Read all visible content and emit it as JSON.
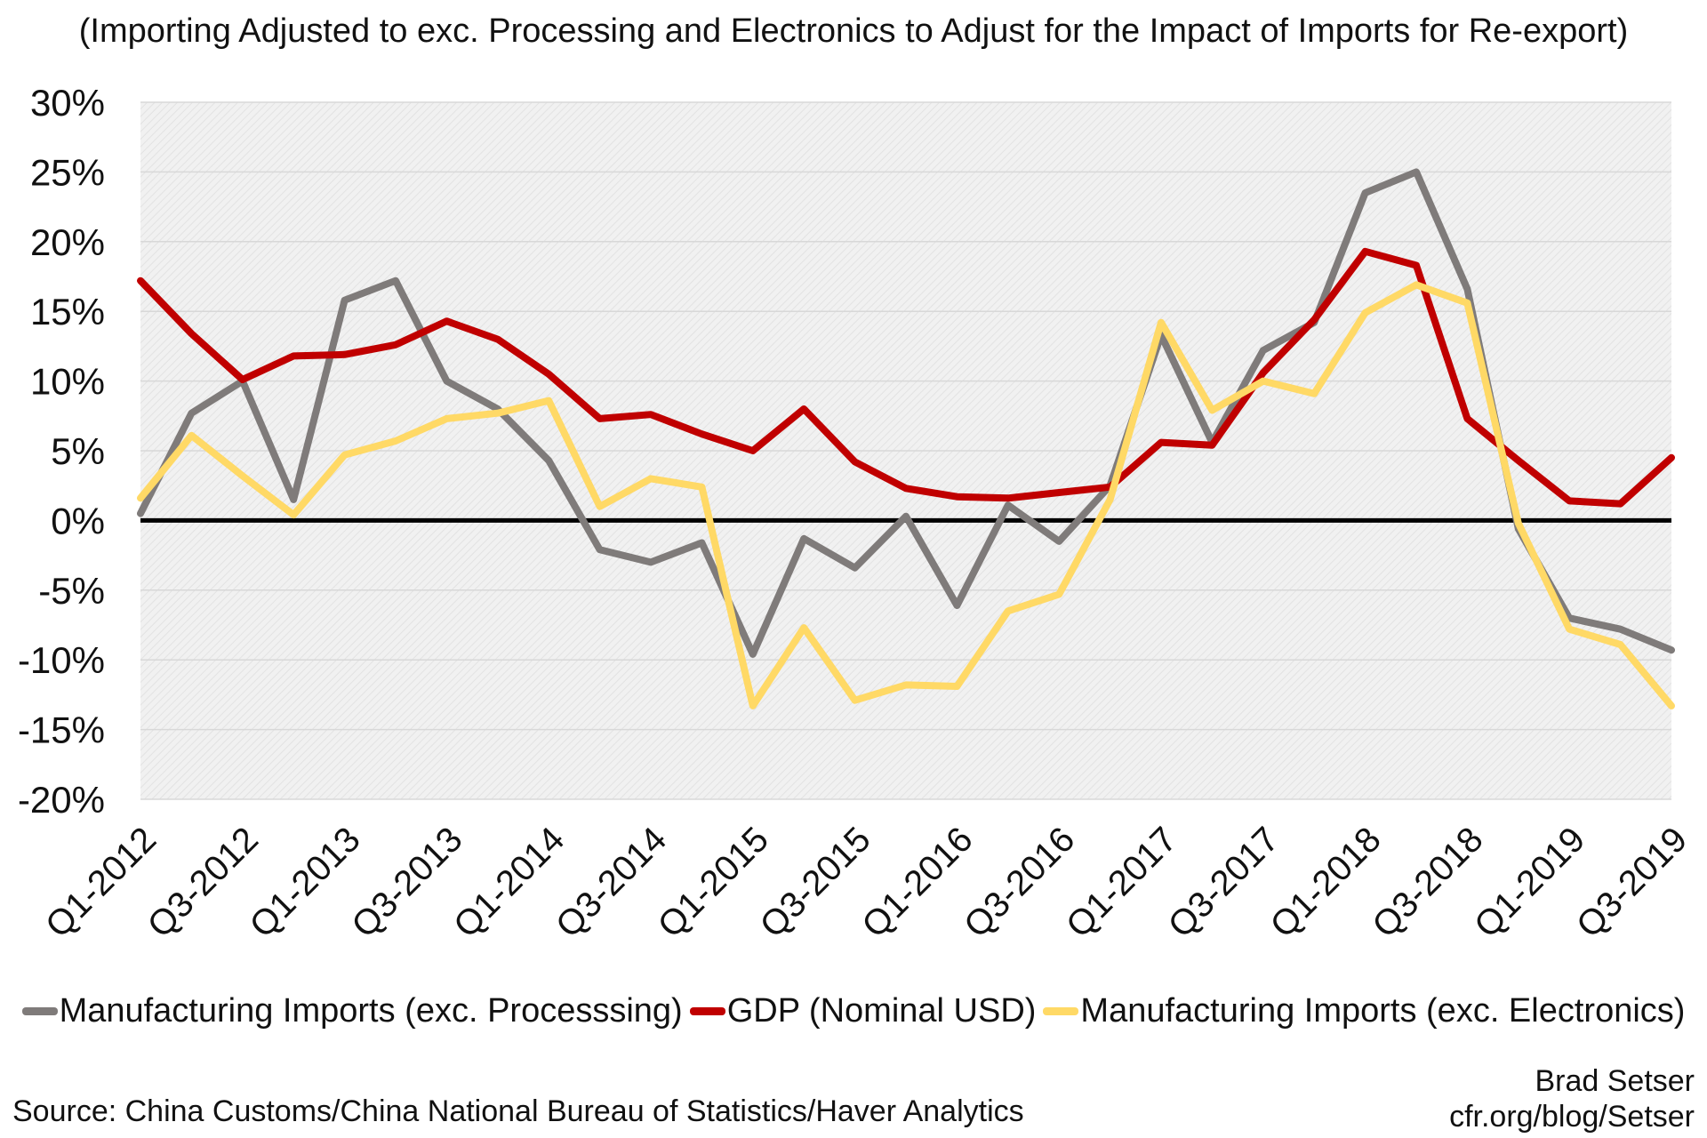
{
  "subtitle": "(Importing Adjusted to exc. Processing and Electronics to Adjust for the Impact of Imports for Re-export)",
  "source": "Source: China Customs/China National Bureau of Statistics/Haver Analytics",
  "credit": {
    "author": "Brad Setser",
    "url": "cfr.org/blog/Setser"
  },
  "chart_data": {
    "type": "line",
    "ylim": [
      -20,
      30
    ],
    "yticks": [
      30,
      25,
      20,
      15,
      10,
      5,
      0,
      -5,
      -10,
      -15,
      -20
    ],
    "ytick_labels": [
      "30%",
      "25%",
      "20%",
      "15%",
      "10%",
      "5%",
      "0%",
      "-5%",
      "-10%",
      "-15%",
      "-20%"
    ],
    "x": [
      "Q1-2012",
      "Q2-2012",
      "Q3-2012",
      "Q4-2012",
      "Q1-2013",
      "Q2-2013",
      "Q3-2013",
      "Q4-2013",
      "Q1-2014",
      "Q2-2014",
      "Q3-2014",
      "Q4-2014",
      "Q1-2015",
      "Q2-2015",
      "Q3-2015",
      "Q4-2015",
      "Q1-2016",
      "Q2-2016",
      "Q3-2016",
      "Q4-2016",
      "Q1-2017",
      "Q2-2017",
      "Q3-2017",
      "Q4-2017",
      "Q1-2018",
      "Q2-2018",
      "Q3-2018",
      "Q4-2018",
      "Q1-2019",
      "Q2-2019",
      "Q3-2019"
    ],
    "xtick_labels": [
      "Q1-2012",
      "Q3-2012",
      "Q1-2013",
      "Q3-2013",
      "Q1-2014",
      "Q3-2014",
      "Q1-2015",
      "Q3-2015",
      "Q1-2016",
      "Q3-2016",
      "Q1-2017",
      "Q3-2017",
      "Q1-2018",
      "Q3-2018",
      "Q1-2019",
      "Q3-2019"
    ],
    "grid": true,
    "legend_position": "bottom",
    "series": [
      {
        "name": "Manufacturing Imports (exc. Processsing)",
        "color": "#7f7b7a",
        "values": [
          0.5,
          7.7,
          10.0,
          1.5,
          15.8,
          17.2,
          10.0,
          8.0,
          4.3,
          -2.1,
          -3.0,
          -1.6,
          -9.6,
          -1.3,
          -3.4,
          0.3,
          -6.1,
          1.1,
          -1.5,
          2.5,
          13.3,
          5.6,
          12.2,
          14.2,
          23.5,
          25.0,
          16.6,
          -0.6,
          -7.0,
          -7.8,
          -9.3
        ]
      },
      {
        "name": "GDP (Nominal USD)",
        "color": "#c00000",
        "values": [
          17.2,
          13.4,
          10.1,
          11.8,
          11.9,
          12.6,
          14.3,
          13.0,
          10.5,
          7.3,
          7.6,
          6.2,
          5.0,
          8.0,
          4.2,
          2.3,
          1.7,
          1.6,
          2.0,
          2.4,
          5.6,
          5.4,
          10.6,
          14.4,
          19.3,
          18.3,
          7.3,
          4.3,
          1.4,
          1.2,
          4.5
        ]
      },
      {
        "name": "Manufacturing Imports (exc. Electronics)",
        "color": "#ffd966",
        "values": [
          1.6,
          6.1,
          3.2,
          0.4,
          4.7,
          5.7,
          7.3,
          7.7,
          8.6,
          1.0,
          3.0,
          2.4,
          -13.3,
          -7.7,
          -12.9,
          -11.8,
          -11.9,
          -6.5,
          -5.3,
          1.5,
          14.2,
          7.9,
          10.0,
          9.1,
          14.9,
          16.9,
          15.6,
          -0.2,
          -7.8,
          -8.9,
          -13.3
        ]
      }
    ]
  }
}
